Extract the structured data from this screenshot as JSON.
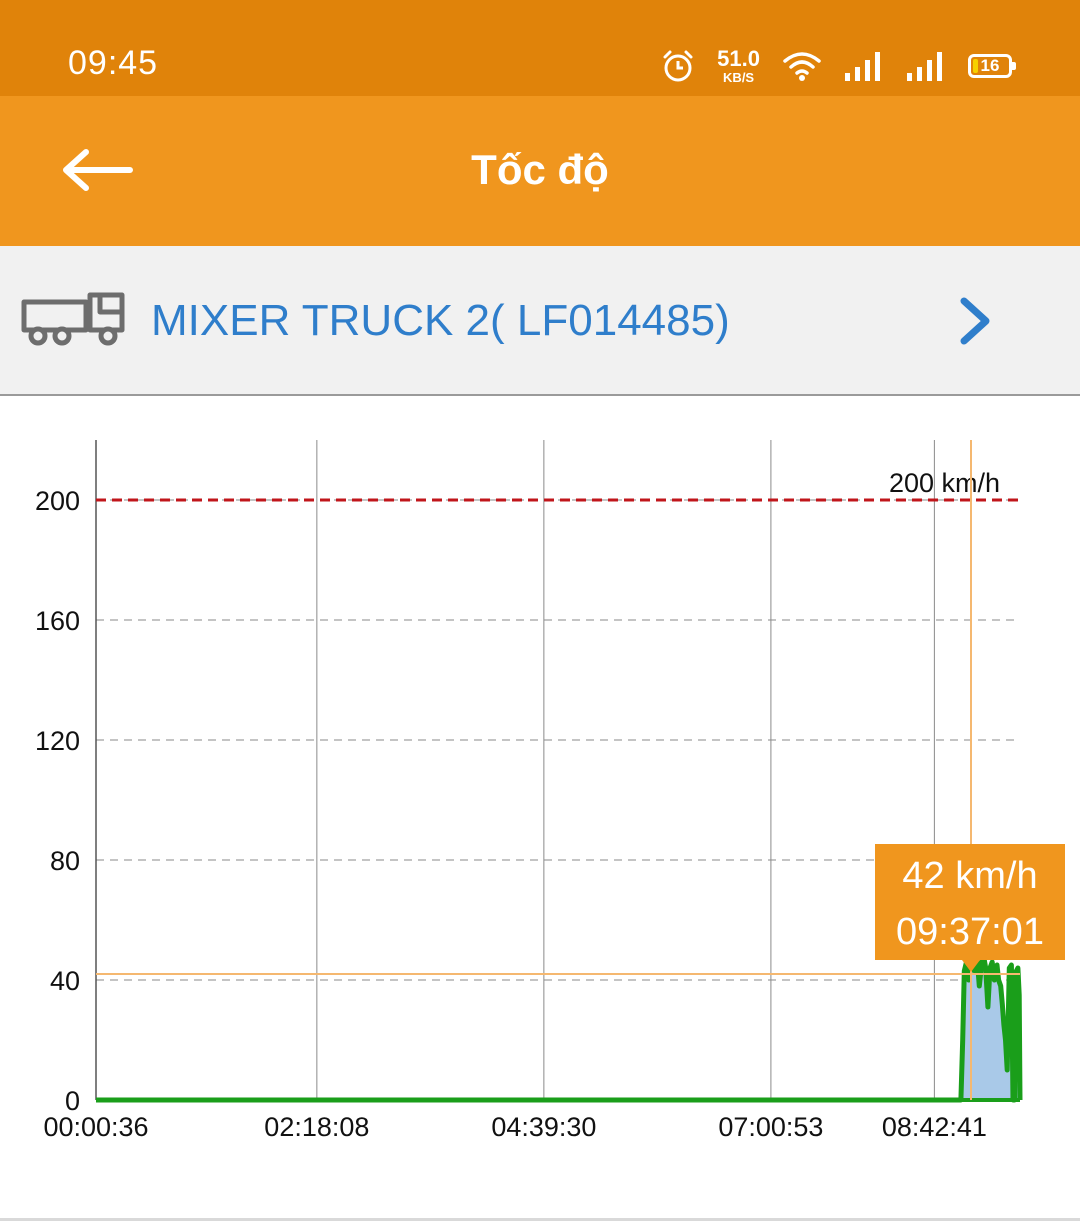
{
  "status_bar": {
    "time": "09:45",
    "net_speed_value": "51.0",
    "net_speed_unit": "KB/S",
    "battery_level": "16",
    "icons": [
      "alarm-icon",
      "wifi-icon",
      "signal-icon",
      "signal-icon",
      "battery-icon"
    ]
  },
  "app_bar": {
    "title": "Tốc độ",
    "back_icon": "back-arrow-icon"
  },
  "vehicle": {
    "name": "MIXER TRUCK 2( LF014485)",
    "icon": "truck-icon",
    "next_icon": "chevron-right-icon"
  },
  "colors": {
    "status_bar": "#e0830a",
    "app_bar": "#f0961e",
    "vehicle_text": "#2f7ecb",
    "speed_line": "#1a9e1a",
    "speed_fill": "#a9c9e8",
    "limit_line": "#c0161b",
    "tooltip": "#f0961e"
  },
  "chart_data": {
    "type": "area",
    "title": "",
    "xlabel": "",
    "ylabel": "",
    "ylim": [
      0,
      220
    ],
    "yticks": [
      0,
      40,
      80,
      120,
      160,
      200
    ],
    "xticks": [
      "00:00:36",
      "02:18:08",
      "04:39:30",
      "07:00:53",
      "08:42:41"
    ],
    "xticks_seconds": [
      36,
      8288,
      16770,
      25253,
      31361
    ],
    "xlim_seconds": [
      36,
      34560
    ],
    "limit": {
      "value": 200,
      "label": "200 km/h"
    },
    "series": [
      {
        "x_seconds": [
          36,
          31361,
          32100,
          32350,
          32420,
          32480,
          32560,
          32640,
          32720,
          32800,
          32880,
          32960,
          33040,
          33120,
          33200,
          33280,
          33360,
          33440,
          33520,
          33600,
          33700,
          33760,
          33840,
          33900,
          33960,
          34020,
          34080,
          34160,
          34240,
          34300,
          34360,
          34420,
          34480,
          34530,
          34560
        ],
        "values": [
          0,
          0,
          0,
          0,
          20,
          43,
          46,
          40,
          44,
          45,
          43,
          47,
          38,
          45,
          48,
          44,
          31,
          44,
          46,
          40,
          45,
          40,
          38,
          32,
          25,
          20,
          10,
          44,
          45,
          0,
          0,
          43,
          44,
          35,
          0
        ]
      }
    ],
    "tooltip": {
      "value_label": "42 km/h",
      "time_label": "09:37:01",
      "time_seconds": 34621,
      "value": 42
    },
    "grid": true
  }
}
